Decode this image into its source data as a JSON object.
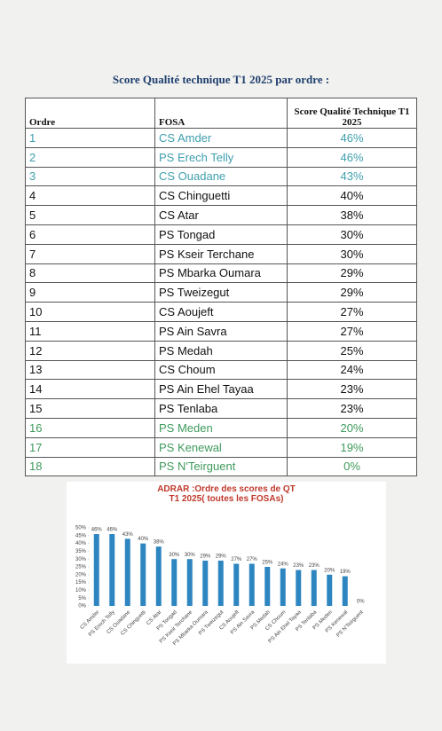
{
  "header": {
    "title": "Score Qualité technique T1 2025 par ordre :"
  },
  "table": {
    "columns": [
      "Ordre",
      "FOSA",
      "Score Qualité Technique T1 2025"
    ],
    "rows": [
      [
        "1",
        "CS Amder",
        "46%"
      ],
      [
        "2",
        "PS Erech Telly",
        "46%"
      ],
      [
        "3",
        "CS Ouadane",
        "43%"
      ],
      [
        "4",
        "CS Chinguetti",
        "40%"
      ],
      [
        "5",
        "CS Atar",
        "38%"
      ],
      [
        "6",
        "PS Tongad",
        "30%"
      ],
      [
        "7",
        "PS Kseir Terchane",
        "30%"
      ],
      [
        "8",
        "PS Mbarka Oumara",
        "29%"
      ],
      [
        "9",
        "PS Tweizegut",
        "29%"
      ],
      [
        "10",
        "CS Aoujeft",
        "27%"
      ],
      [
        "11",
        "PS Ain Savra",
        "27%"
      ],
      [
        "12",
        "PS Medah",
        "25%"
      ],
      [
        "13",
        "CS Choum",
        "24%"
      ],
      [
        "14",
        "PS Ain Ehel Tayaa",
        "23%"
      ],
      [
        "15",
        "PS Tenlaba",
        "23%"
      ],
      [
        "16",
        "PS Meden",
        "20%"
      ],
      [
        "17",
        "PS Kenewal",
        "19%"
      ],
      [
        "18",
        "PS N'Teirguent",
        "0%"
      ]
    ]
  },
  "chart_data": {
    "type": "bar",
    "title": "ADRAR :Ordre des scores de QT T1 2025( toutes les FOSAs)",
    "categories": [
      "CS Amder",
      "PS Erech Telly",
      "CS Ouadane",
      "CS Chinguetti",
      "CS Atar",
      "PS Tongad",
      "PS Kseir Terchane",
      "PS Mbarka Oumara",
      "PS Tweizegut",
      "CS Aoujeft",
      "PS Ain Savra",
      "PS Medah",
      "CS Choum",
      "PS Ain Ehel Tayaa",
      "PS Tenlaba",
      "PS Meden",
      "PS Kenewal",
      "PS N'Teirguent"
    ],
    "values": [
      46,
      46,
      43,
      40,
      38,
      30,
      30,
      29,
      29,
      27,
      27,
      25,
      24,
      23,
      23,
      20,
      19,
      0
    ],
    "value_labels": [
      "46%",
      "46%",
      "43%",
      "40%",
      "38%",
      "30%",
      "30%",
      "29%",
      "29%",
      "27%",
      "27%",
      "25%",
      "24%",
      "23%",
      "23%",
      "20%",
      "19%",
      "0%"
    ],
    "color": "#2e86c1",
    "ylim": [
      0,
      50
    ],
    "yticks": [
      {
        "value": 0,
        "label": "0%"
      },
      {
        "value": 5,
        "label": "5%"
      },
      {
        "value": 10,
        "label": "10%"
      },
      {
        "value": 15,
        "label": "15%"
      },
      {
        "value": 20,
        "label": "20%"
      },
      {
        "value": 25,
        "label": "25%"
      },
      {
        "value": 30,
        "label": "30%"
      },
      {
        "value": 35,
        "label": "35%"
      },
      {
        "value": 40,
        "label": "40%"
      },
      {
        "value": 45,
        "label": "45%"
      },
      {
        "value": 50,
        "label": "50%"
      }
    ]
  }
}
